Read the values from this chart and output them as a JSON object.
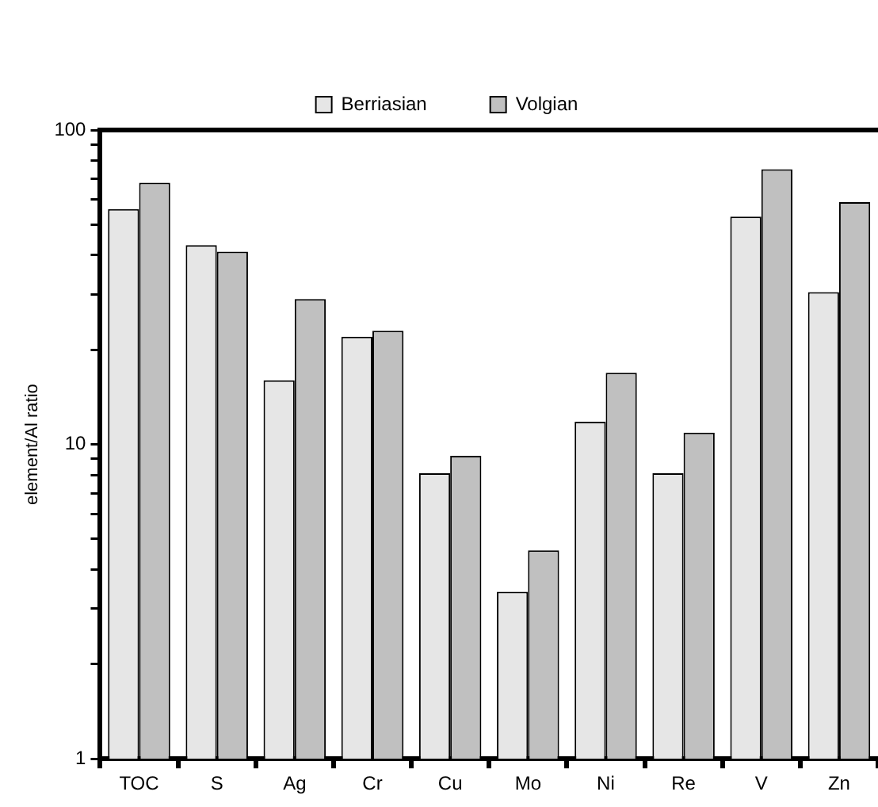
{
  "chart_data": {
    "type": "bar",
    "ylabel": "element/Al ratio",
    "categories": [
      "TOC",
      "S",
      "Ag",
      "Cr",
      "Cu",
      "Mo",
      "Ni",
      "Re",
      "V",
      "Zn"
    ],
    "series": [
      {
        "name": "Berriasian",
        "color": "#e6e6e6",
        "values": [
          56,
          43,
          16,
          22,
          8.1,
          3.4,
          11.8,
          8.1,
          53,
          30.5
        ]
      },
      {
        "name": "Volgian",
        "color": "#c0c0c0",
        "values": [
          68,
          41,
          29,
          23,
          9.2,
          4.6,
          16.9,
          10.9,
          75,
          59
        ]
      }
    ],
    "log": "y",
    "ylim": [
      1,
      100
    ],
    "yticks": [
      1,
      {
        "value": 2,
        "label": null
      },
      {
        "value": 3,
        "label": null
      },
      {
        "value": 4,
        "label": null
      },
      {
        "value": 5,
        "label": null
      },
      {
        "value": 6,
        "label": null
      },
      {
        "value": 7,
        "label": null
      },
      {
        "value": 8,
        "label": null
      },
      {
        "value": 9,
        "label": null
      },
      10,
      {
        "value": 20,
        "label": null
      },
      {
        "value": 30,
        "label": null
      },
      {
        "value": 40,
        "label": null
      },
      {
        "value": 50,
        "label": null
      },
      {
        "value": 60,
        "label": null
      },
      {
        "value": 70,
        "label": null
      },
      {
        "value": 80,
        "label": null
      },
      {
        "value": 90,
        "label": null
      },
      100
    ],
    "grid": false,
    "legend": "top"
  }
}
